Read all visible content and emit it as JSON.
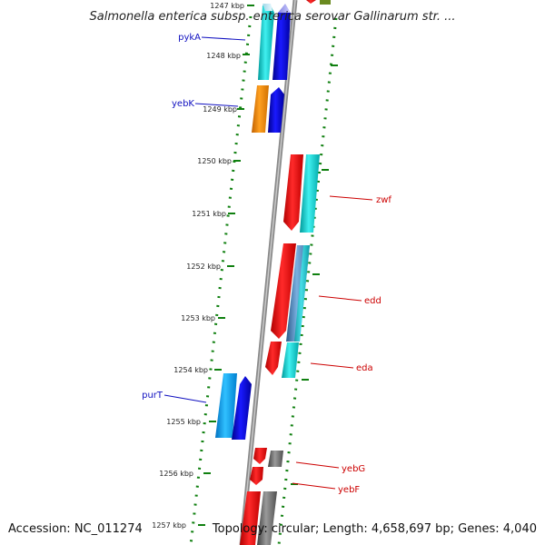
{
  "header": {
    "title": "Salmonella enterica subsp. enterica serovar Gallinarum str. ..."
  },
  "footer": {
    "accession": "Accession: NC_011274",
    "summary": "Topology: circular; Length: 4,658,697 bp; Genes: 4,040"
  },
  "ticks": [
    {
      "label": "1247 kbp"
    },
    {
      "label": "1248 kbp"
    },
    {
      "label": "1249 kbp"
    },
    {
      "label": "1250 kbp"
    },
    {
      "label": "1251 kbp"
    },
    {
      "label": "1252 kbp"
    },
    {
      "label": "1253 kbp"
    },
    {
      "label": "1254 kbp"
    },
    {
      "label": "1255 kbp"
    },
    {
      "label": "1256 kbp"
    },
    {
      "label": "1257 kbp"
    }
  ],
  "genes": [
    {
      "name": "pykA",
      "strand": "reverse"
    },
    {
      "name": "yebK",
      "strand": "reverse"
    },
    {
      "name": "zwf",
      "strand": "forward"
    },
    {
      "name": "edd",
      "strand": "forward"
    },
    {
      "name": "eda",
      "strand": "forward"
    },
    {
      "name": "purT",
      "strand": "reverse"
    },
    {
      "name": "yebG",
      "strand": "forward"
    },
    {
      "name": "yebF",
      "strand": "forward"
    }
  ],
  "colors": {
    "reverse_label": "#1010c0",
    "forward_label": "#cc0000",
    "cds_red": "#ff1010",
    "cds_blue": "#0a0ae0",
    "cds_cyan": "#10d0d0",
    "cds_skyblue": "#10a8f0",
    "cds_orange": "#ff9000",
    "cds_gray": "#707070",
    "cds_steel": "#4a8ab8",
    "backbone": "#909090",
    "dots": "#108010"
  }
}
